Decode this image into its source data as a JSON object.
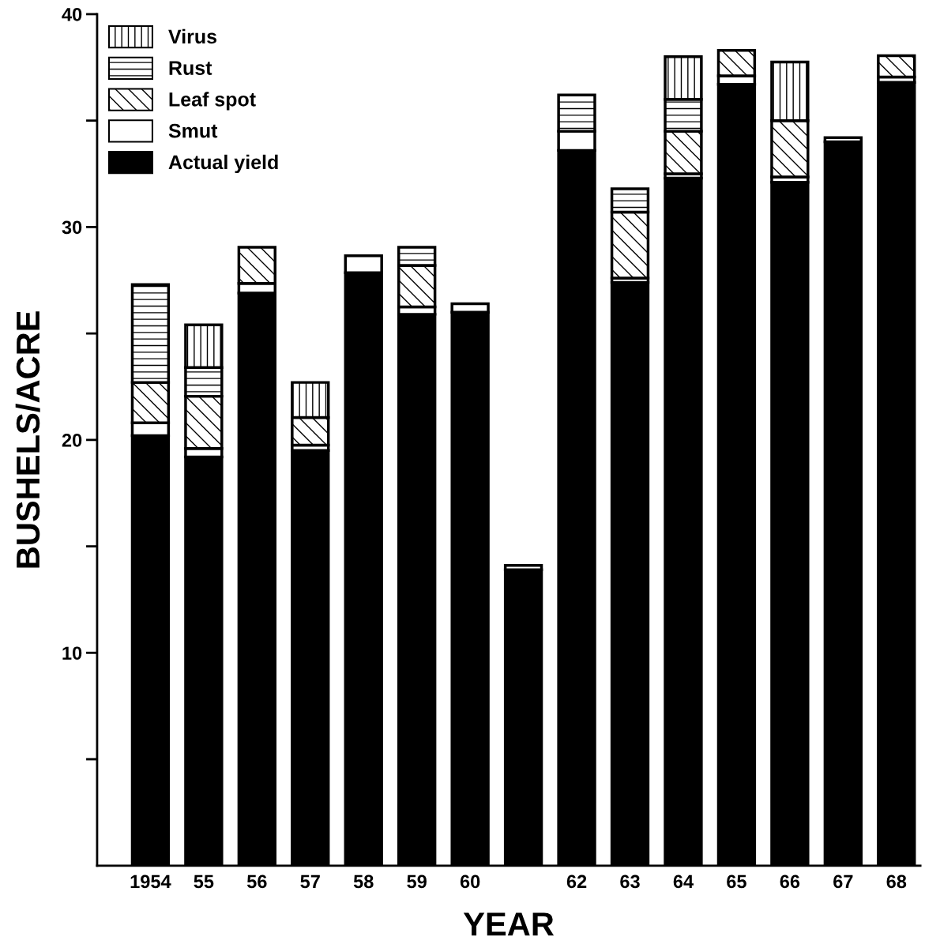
{
  "chart_data": {
    "type": "bar",
    "stacked": true,
    "xlabel": "YEAR",
    "ylabel": "BUSHELS/ACRE",
    "categories": [
      "1954",
      "55",
      "56",
      "57",
      "58",
      "59",
      "60",
      null,
      "62",
      "63",
      "64",
      "65",
      "66",
      "67",
      "68"
    ],
    "series": [
      {
        "name": "Actual yield",
        "color": "#000000",
        "values": [
          20.2,
          19.2,
          26.9,
          19.5,
          27.85,
          25.9,
          26.0,
          13.9,
          33.6,
          27.4,
          32.3,
          36.7,
          32.1,
          34.0,
          36.8
        ]
      },
      {
        "name": "Smut",
        "color": "#ffffff",
        "values": [
          0.6,
          0.4,
          0.45,
          0.25,
          0.8,
          0.35,
          0.4,
          0.2,
          0.9,
          0.2,
          0.2,
          0.4,
          0.25,
          0.2,
          0.25
        ]
      },
      {
        "name": "Leaf spot",
        "color": "#ffffff",
        "values": [
          1.9,
          2.45,
          1.7,
          1.3,
          null,
          1.95,
          null,
          null,
          null,
          3.1,
          2.0,
          1.2,
          2.65,
          null,
          1.0
        ]
      },
      {
        "name": "Rust",
        "color": "#ffffff",
        "values": [
          4.6,
          1.35,
          null,
          null,
          null,
          0.85,
          null,
          null,
          1.7,
          1.1,
          1.5,
          null,
          null,
          null,
          null
        ]
      },
      {
        "name": "Virus",
        "color": "#ffffff",
        "values": [
          null,
          2.0,
          null,
          1.65,
          null,
          null,
          null,
          null,
          null,
          null,
          2.0,
          null,
          2.75,
          null,
          null
        ]
      }
    ],
    "ylim": [
      0,
      40
    ],
    "yticks": [
      {
        "value": 5,
        "label": null
      },
      10,
      {
        "value": 15,
        "label": null
      },
      20,
      {
        "value": 25,
        "label": null
      },
      30,
      {
        "value": 35,
        "label": null
      },
      40
    ],
    "legend": "top left",
    "grid": false
  }
}
